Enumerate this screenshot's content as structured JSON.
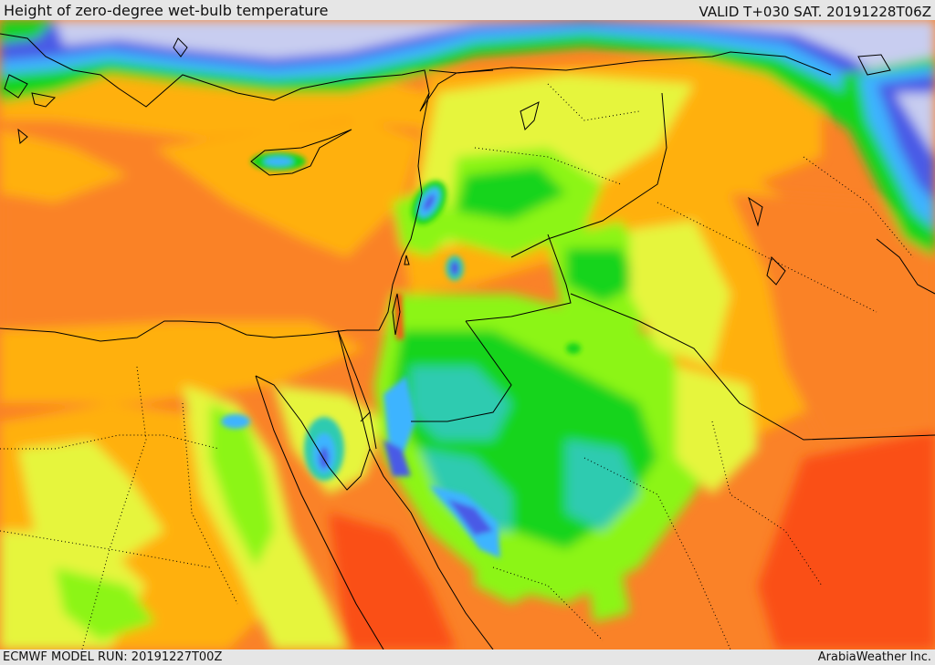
{
  "header": {
    "title": "Height of zero-degree wet-bulb temperature",
    "valid_time": "VALID T+030 SAT. 20191228T06Z"
  },
  "footer": {
    "model_run": "ECMWF MODEL RUN: 20191227T00Z",
    "credit": "ArabiaWeather Inc."
  },
  "map": {
    "region": "Eastern Mediterranean / Levant / Arabian Peninsula",
    "color_scale": [
      "#c8cdf0",
      "#4a5ae6",
      "#3cb4ff",
      "#2ecbb0",
      "#16d41e",
      "#8cf516",
      "#e6f53c",
      "#ffb00a",
      "#fa8228",
      "#fa5014"
    ],
    "colors": {
      "frame": "#e6e6e6",
      "border_line": "#000000",
      "coastline": "#000000"
    }
  }
}
